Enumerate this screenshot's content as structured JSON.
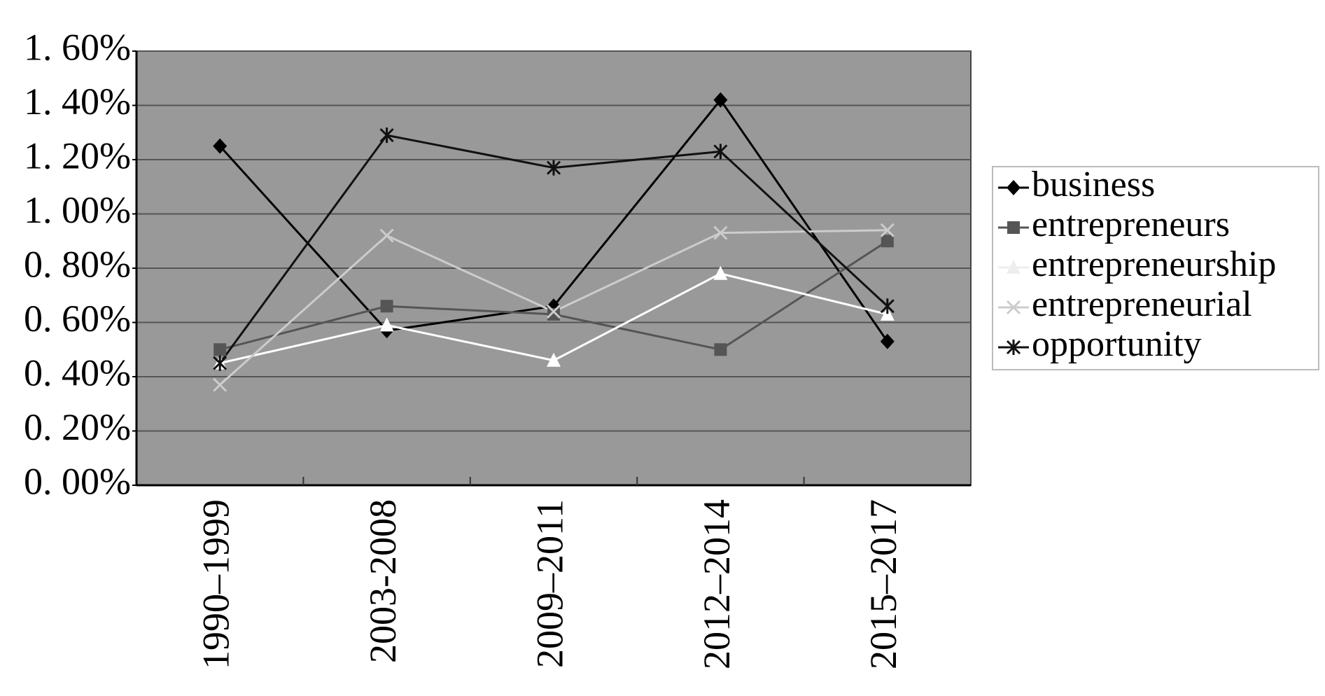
{
  "chart_data": {
    "type": "line",
    "categories": [
      "1990–1999",
      "2003-2008",
      "2009–2011",
      "2012–2014",
      "2015–2017"
    ],
    "series": [
      {
        "name": "business",
        "color": "#000000",
        "marker": "diamond",
        "values": [
          1.25,
          0.57,
          0.66,
          1.42,
          0.53
        ]
      },
      {
        "name": "entrepreneurs",
        "color": "#555555",
        "marker": "square",
        "values": [
          0.5,
          0.66,
          0.63,
          0.5,
          0.9
        ]
      },
      {
        "name": "entrepreneurship",
        "color": "#ffffff",
        "marker": "triangle",
        "values": [
          0.45,
          0.59,
          0.46,
          0.78,
          0.63
        ]
      },
      {
        "name": "entrepreneurial",
        "color": "#cccccc",
        "marker": "x",
        "values": [
          0.37,
          0.92,
          0.64,
          0.93,
          0.94
        ]
      },
      {
        "name": "opportunity",
        "color": "#111111",
        "marker": "star",
        "values": [
          0.45,
          1.29,
          1.17,
          1.23,
          0.66
        ]
      }
    ],
    "ylim": [
      0,
      1.6
    ],
    "yticks": [
      {
        "value": 0,
        "label": "0. 00%"
      },
      {
        "value": 0.2,
        "label": "0. 20%"
      },
      {
        "value": 0.4,
        "label": "0. 40%"
      },
      {
        "value": 0.6,
        "label": "0. 60%"
      },
      {
        "value": 0.8,
        "label": "0. 80%"
      },
      {
        "value": 1.0,
        "label": "1. 00%"
      },
      {
        "value": 1.2,
        "label": "1. 20%"
      },
      {
        "value": 1.4,
        "label": "1. 40%"
      },
      {
        "value": 1.6,
        "label": "1. 60%"
      }
    ],
    "grid": true,
    "legend": "right",
    "plot_background": "#999999"
  }
}
